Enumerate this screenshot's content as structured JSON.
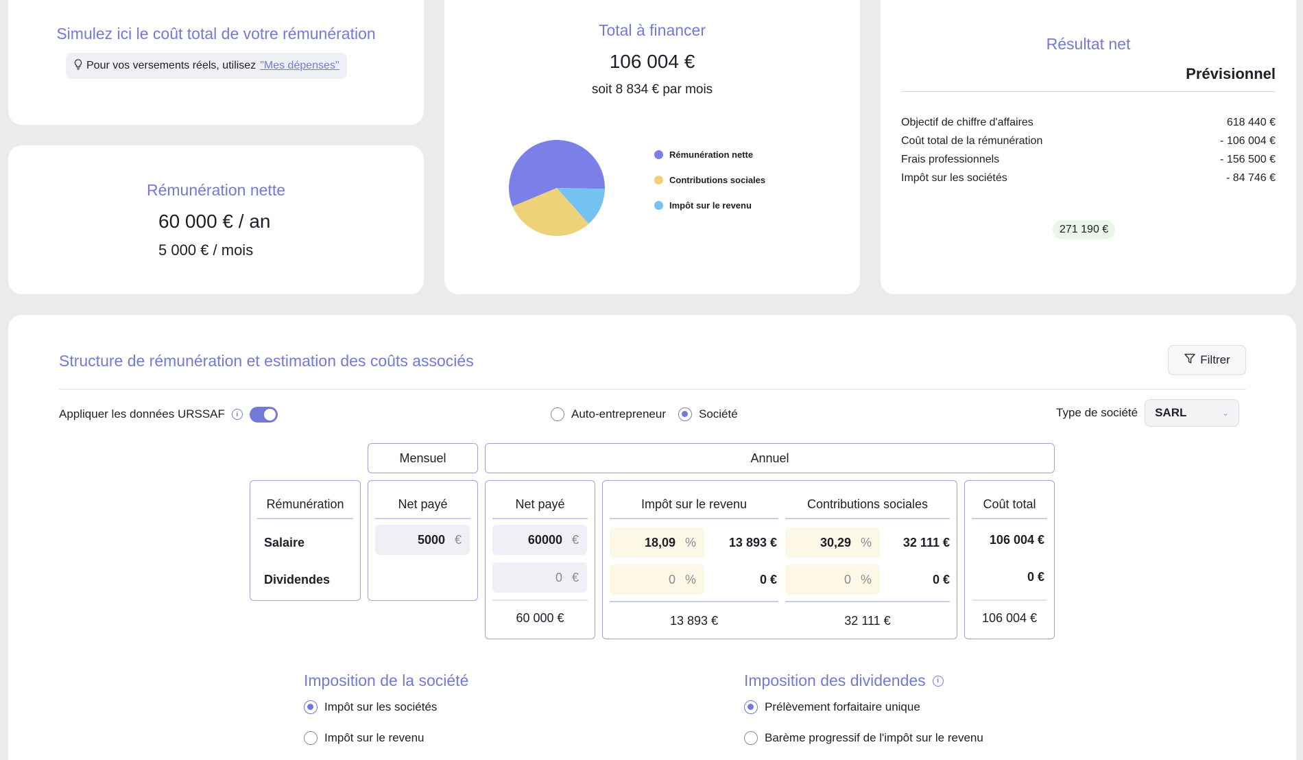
{
  "simulation": {
    "title": "Simulez ici le coût total de votre rémunération",
    "hint_prefix": "Pour vos versements réels, utilisez",
    "hint_link": "\"Mes dépenses\""
  },
  "net_card": {
    "title": "Rémunération nette",
    "annual": "60 000 € / an",
    "monthly": "5 000 € / mois"
  },
  "total_card": {
    "title": "Total à financer",
    "amount": "106 004 €",
    "per_month": "soit 8 834 € par mois"
  },
  "chart_data": {
    "type": "pie",
    "title": "",
    "series": [
      {
        "name": "Rémunération nette",
        "value": 60000,
        "color": "#7b80e9"
      },
      {
        "name": "Contributions sociales",
        "value": 32111,
        "color": "#edd27a"
      },
      {
        "name": "Impôt sur le revenu",
        "value": 13893,
        "color": "#74c2ef"
      }
    ],
    "legend_position": "right"
  },
  "result_card": {
    "title": "Résultat net",
    "column_label": "Prévisionnel",
    "rows": [
      {
        "label": "Objectif de chiffre d'affaires",
        "value": "618 440 €"
      },
      {
        "label": "Coût total de la rémunération",
        "value": "- 106 004 €"
      },
      {
        "label": "Frais professionnels",
        "value": "- 156 500 €"
      },
      {
        "label": "Impôt sur les sociétés",
        "value": "- 84 746 €"
      }
    ],
    "net": "271 190 €"
  },
  "main": {
    "title": "Structure de rémunération et estimation des coûts associés",
    "filter_label": "Filtrer",
    "urssaf_label": "Appliquer les données URSSAF",
    "urssaf_enabled": true,
    "status_options": [
      "Auto-entrepreneur",
      "Société"
    ],
    "status_selected": "Société",
    "company_type_label": "Type de société",
    "company_type_value": "SARL"
  },
  "table": {
    "monthly_header": "Mensuel",
    "annual_header": "Annuel",
    "col_remuneration": "Rémunération",
    "col_net_paid": "Net payé",
    "col_income_tax": "Impôt sur le revenu",
    "col_social": "Contributions sociales",
    "col_total_cost": "Coût total",
    "rows": [
      {
        "label": "Salaire",
        "monthly_net": "5000",
        "annual_net": "60000",
        "tax_rate": "18,09",
        "tax_amount": "13 893 €",
        "social_rate": "30,29",
        "social_amount": "32 111 €",
        "total": "106 004 €"
      },
      {
        "label": "Dividendes",
        "annual_net": "0",
        "tax_rate": "0",
        "tax_amount": "0 €",
        "social_rate": "0",
        "social_amount": "0 €",
        "total": "0 €"
      }
    ],
    "totals": {
      "annual_net": "60 000 €",
      "tax": "13 893 €",
      "social": "32 111 €",
      "total": "106 004 €"
    },
    "euro": "€",
    "percent": "%"
  },
  "company_tax": {
    "title": "Imposition de la société",
    "options": [
      "Impôt sur les sociétés",
      "Impôt sur le revenu"
    ],
    "selected": "Impôt sur les sociétés"
  },
  "dividend_tax": {
    "title": "Imposition des dividendes",
    "options": [
      "Prélèvement forfaitaire unique",
      "Barème progressif de l'impôt sur le revenu"
    ],
    "selected": "Prélèvement forfaitaire unique"
  }
}
